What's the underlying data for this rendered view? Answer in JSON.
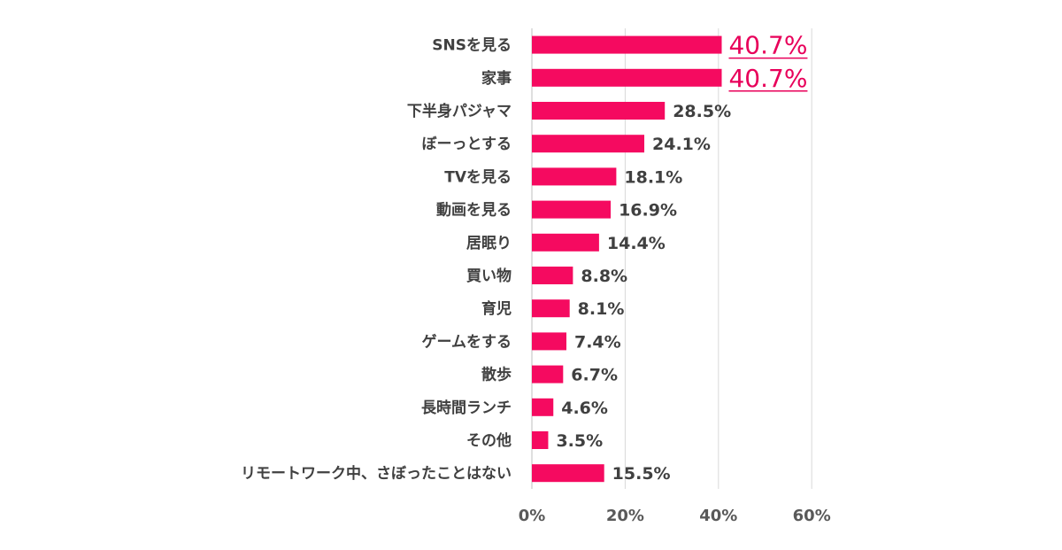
{
  "chart_data": {
    "type": "bar",
    "orientation": "horizontal",
    "categories": [
      "SNSを見る",
      "家事",
      "下半身パジャマ",
      "ぼーっとする",
      "TVを見る",
      "動画を見る",
      "居眠り",
      "買い物",
      "育児",
      "ゲームをする",
      "散歩",
      "長時間ランチ",
      "その他",
      "リモートワーク中、さぼったことはない"
    ],
    "values": [
      40.7,
      40.7,
      28.5,
      24.1,
      18.1,
      16.9,
      14.4,
      8.8,
      8.1,
      7.4,
      6.7,
      4.6,
      3.5,
      15.5
    ],
    "value_labels": [
      "40.7%",
      "40.7%",
      "28.5%",
      "24.1%",
      "18.1%",
      "16.9%",
      "14.4%",
      "8.8%",
      "8.1%",
      "7.4%",
      "6.7%",
      "4.6%",
      "3.5%",
      "15.5%"
    ],
    "highlighted": [
      0,
      1
    ],
    "xlim": [
      0,
      60
    ],
    "x_ticks": [
      0,
      20,
      40,
      60
    ],
    "x_tick_labels": [
      "0%",
      "20%",
      "40%",
      "60%"
    ],
    "grid": true,
    "colors": {
      "bar": "#f50a60",
      "highlight_text": "#e8005a",
      "text": "#404040"
    }
  }
}
